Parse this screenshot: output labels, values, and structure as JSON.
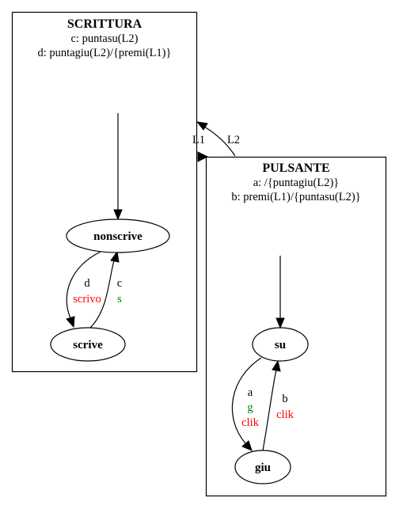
{
  "colors": {
    "stroke": "#000000",
    "background": "#ffffff",
    "output_red": "#ff0000",
    "output_green": "#008000"
  },
  "scrittura": {
    "title": "SCRITTURA",
    "line1": "c: puntasu(L2)",
    "line2": "d: puntagiu(L2)/{premi(L1)}",
    "states": {
      "nonscrive": "nonscrive",
      "scrive": "scrive"
    },
    "transitions": {
      "d": {
        "event": "d",
        "output": "scrivo"
      },
      "c": {
        "event": "c",
        "output": "s"
      }
    }
  },
  "pulsante": {
    "title": "PULSANTE",
    "line1": "a: /{puntagiu(L2)}",
    "line2": "b: premi(L1)/{puntasu(L2)}",
    "states": {
      "su": "su",
      "giu": "giu"
    },
    "transitions": {
      "a": {
        "event": "a",
        "output_green": "g",
        "output_red": "clik"
      },
      "b": {
        "event": "b",
        "output": "clik"
      }
    }
  },
  "links": {
    "l1": "L1",
    "l2": "L2"
  }
}
